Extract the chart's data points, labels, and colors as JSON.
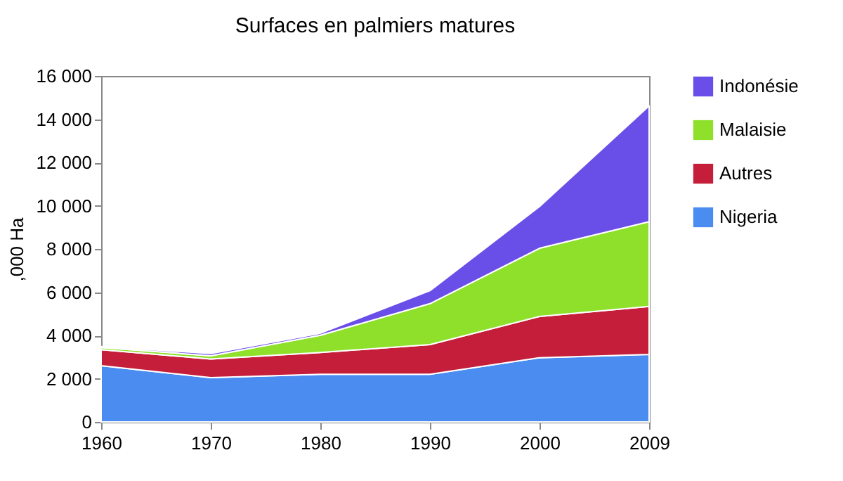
{
  "chart_data": {
    "type": "area",
    "title": "Surfaces en palmiers matures",
    "ylabel": ",000 Ha",
    "categories": [
      "1960",
      "1970",
      "1980",
      "1990",
      "2000",
      "2009"
    ],
    "stacked": true,
    "series": [
      {
        "name": "Nigeria",
        "color": "#4a8cf0",
        "values": [
          2600,
          2050,
          2200,
          2200,
          2970,
          3120
        ]
      },
      {
        "name": "Autres",
        "color": "#c41e3a",
        "values": [
          740,
          860,
          1010,
          1380,
          1910,
          2220
        ]
      },
      {
        "name": "Malaisie",
        "color": "#8ee02a",
        "values": [
          100,
          150,
          800,
          1890,
          3150,
          3920
        ]
      },
      {
        "name": "Indonésie",
        "color": "#6a4ee8",
        "values": [
          50,
          100,
          90,
          600,
          1930,
          5360
        ]
      }
    ],
    "ylim": [
      0,
      16000
    ],
    "yticks": [
      0,
      {
        "value": 2000,
        "label": "2 000"
      },
      {
        "value": 4000,
        "label": "4 000"
      },
      {
        "value": 6000,
        "label": "6 000"
      },
      {
        "value": 8000,
        "label": "8 000"
      },
      {
        "value": 10000,
        "label": "10 000"
      },
      {
        "value": 12000,
        "label": "12 000"
      },
      {
        "value": 14000,
        "label": "14 000"
      },
      {
        "value": 16000,
        "label": "16 000"
      }
    ],
    "legend": "right"
  }
}
